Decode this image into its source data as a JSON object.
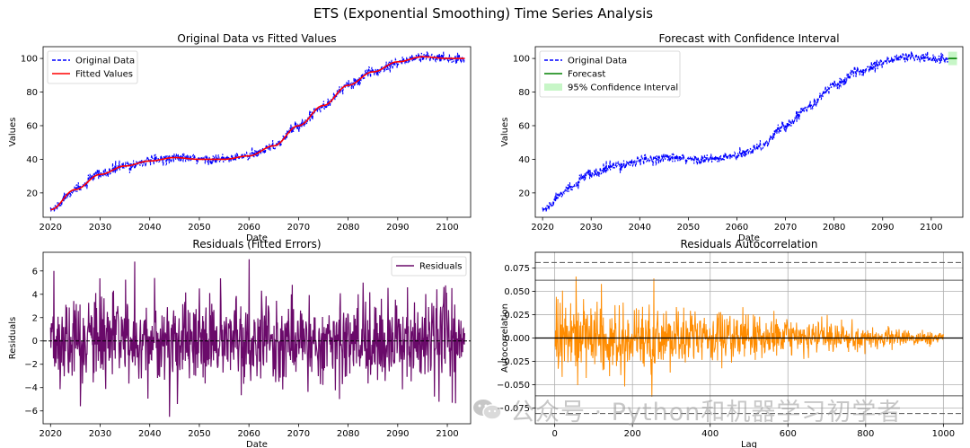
{
  "title": "ETS (Exponential Smoothing) Time Series Analysis",
  "watermark": "公众号 · Python和机器学习初学者",
  "colors": {
    "original_dashed": "#0000ff",
    "fitted": "#ff0000",
    "forecast": "#008000",
    "confidence": "#90ee90",
    "residuals": "#6a0a6a",
    "autocorr": "#ff8c00"
  },
  "chart_data": [
    {
      "type": "line",
      "title": "Original Data vs Fitted Values",
      "xlabel": "Date",
      "ylabel": "Values",
      "xlim": [
        2018.5,
        2104.7
      ],
      "ylim": [
        5.5,
        107
      ],
      "xticks": [
        2020,
        2030,
        2040,
        2050,
        2060,
        2070,
        2080,
        2090,
        2100
      ],
      "yticks": [
        20,
        40,
        60,
        80,
        100
      ],
      "legend": "top-left",
      "series": [
        {
          "name": "Original Data",
          "style": "dashed",
          "color": "#0000ff",
          "x": [
            2020,
            2025,
            2030,
            2035,
            2040,
            2045,
            2050,
            2055,
            2060,
            2065,
            2070,
            2075,
            2080,
            2085,
            2090,
            2095,
            2100,
            2103.5
          ],
          "y": [
            10,
            22,
            31,
            36,
            39,
            41,
            40,
            40,
            42,
            48,
            60,
            72,
            84,
            92,
            98,
            101,
            100,
            100
          ]
        },
        {
          "name": "Fitted Values",
          "style": "solid",
          "color": "#ff0000",
          "x": [
            2020,
            2025,
            2030,
            2035,
            2040,
            2045,
            2050,
            2055,
            2060,
            2065,
            2070,
            2075,
            2080,
            2085,
            2090,
            2095,
            2100,
            2103.5
          ],
          "y": [
            10,
            22,
            31,
            36,
            39,
            41,
            40,
            40,
            42,
            48,
            60,
            72,
            84,
            92,
            98,
            101,
            100,
            100
          ]
        }
      ]
    },
    {
      "type": "line",
      "title": "Forecast with Confidence Interval",
      "xlabel": "Date",
      "ylabel": "Values",
      "xlim": [
        2018.5,
        2106.5
      ],
      "ylim": [
        5.5,
        107
      ],
      "xticks": [
        2020,
        2030,
        2040,
        2050,
        2060,
        2070,
        2080,
        2090,
        2100
      ],
      "yticks": [
        20,
        40,
        60,
        80,
        100
      ],
      "legend": "top-left",
      "series": [
        {
          "name": "Original Data",
          "style": "dashed",
          "color": "#0000ff",
          "x": [
            2020,
            2025,
            2030,
            2035,
            2040,
            2045,
            2050,
            2055,
            2060,
            2065,
            2070,
            2075,
            2080,
            2085,
            2090,
            2095,
            2100,
            2103.5
          ],
          "y": [
            10,
            22,
            31,
            36,
            39,
            41,
            40,
            40,
            42,
            48,
            60,
            72,
            84,
            92,
            98,
            101,
            100,
            100
          ]
        },
        {
          "name": "Forecast",
          "style": "solid",
          "color": "#008000",
          "x": [
            2103.5,
            2105.3
          ],
          "y": [
            100,
            100
          ]
        },
        {
          "name": "95% Confidence Interval",
          "style": "band",
          "color": "#90ee90",
          "x": [
            2103.5,
            2105.3
          ],
          "lower": [
            96,
            96
          ],
          "upper": [
            104,
            104
          ]
        }
      ]
    },
    {
      "type": "line",
      "title": "Residuals (Fitted Errors)",
      "xlabel": "Date",
      "ylabel": "Residuals",
      "xlim": [
        2018.5,
        2104.7
      ],
      "ylim": [
        -7.1,
        7.6
      ],
      "xticks": [
        2020,
        2030,
        2040,
        2050,
        2060,
        2070,
        2080,
        2090,
        2100
      ],
      "yticks": [
        -6,
        -4,
        -2,
        0,
        2,
        4,
        6
      ],
      "legend": "top-right",
      "zero_line": 0,
      "series": [
        {
          "name": "Residuals",
          "color": "#6a0a6a",
          "n_points": 1000,
          "std": 1.8,
          "x_range": [
            2020,
            2103.5
          ],
          "peaks": [
            [
              2037,
              6.8
            ],
            [
              2060,
              7.0
            ],
            [
              2044,
              -6.5
            ],
            [
              2026,
              -5.6
            ],
            [
              2101,
              -5.3
            ],
            [
              2041,
              5.4
            ],
            [
              2083,
              5.0
            ],
            [
              2092,
              4.6
            ]
          ]
        }
      ]
    },
    {
      "type": "line",
      "title": "Residuals Autocorrelation",
      "xlabel": "Lag",
      "ylabel": "Autocorrelation",
      "xlim": [
        -50,
        1050
      ],
      "ylim": [
        -0.092,
        0.092
      ],
      "xticks": [
        0,
        200,
        400,
        600,
        800,
        1000
      ],
      "yticks": [
        -0.075,
        -0.05,
        -0.025,
        0.0,
        0.025,
        0.05,
        0.075
      ],
      "grid": true,
      "conf_dashed": [
        0.081,
        -0.081
      ],
      "conf_solid": [
        0.062,
        -0.062
      ],
      "zero_line": 0,
      "series": [
        {
          "name": "autocorrelation",
          "color": "#ff8c00",
          "n_lags": 1000,
          "start_amp": 0.035,
          "end_amp": 0.005,
          "peaks": [
            [
              55,
              0.066
            ],
            [
              250,
              -0.063
            ],
            [
              120,
              0.058
            ],
            [
              180,
              -0.052
            ]
          ]
        }
      ]
    }
  ]
}
